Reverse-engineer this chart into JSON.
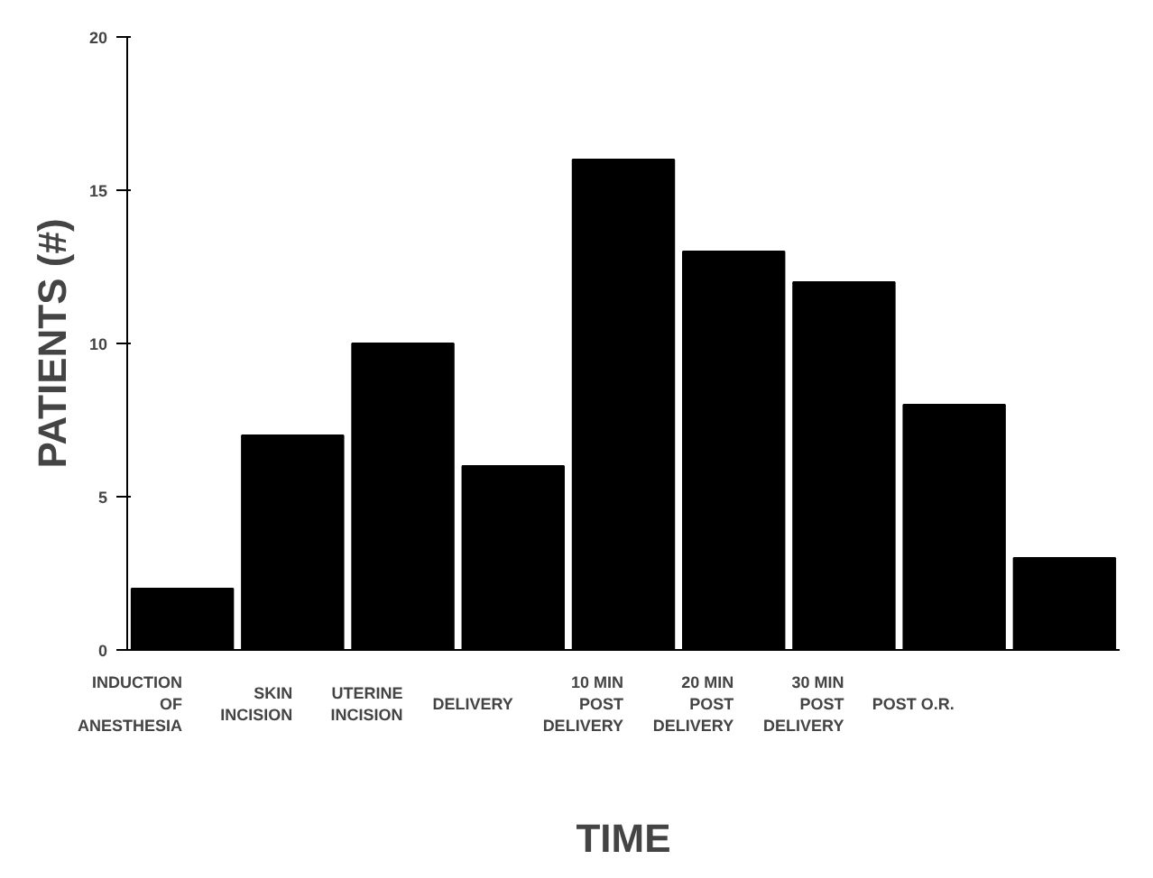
{
  "chart_data": {
    "type": "bar",
    "xlabel": "TIME",
    "ylabel": "PATIENTS (#)",
    "categories": [
      "INDUCTION\nOF\nANESTHESIA",
      "SKIN\nINCISION",
      "UTERINE\nINCISION",
      "DELIVERY",
      "10 MIN\nPOST\nDELIVERY",
      "20 MIN\nPOST\nDELIVERY",
      "30 MIN\nPOST\nDELIVERY",
      "POST O.R.",
      null
    ],
    "values": [
      2,
      7,
      10,
      6,
      16,
      13,
      12,
      8,
      3
    ],
    "color": "#000000",
    "ylim": [
      0,
      20
    ],
    "yticks": [
      0,
      5,
      10,
      15,
      20
    ],
    "grid": false
  }
}
